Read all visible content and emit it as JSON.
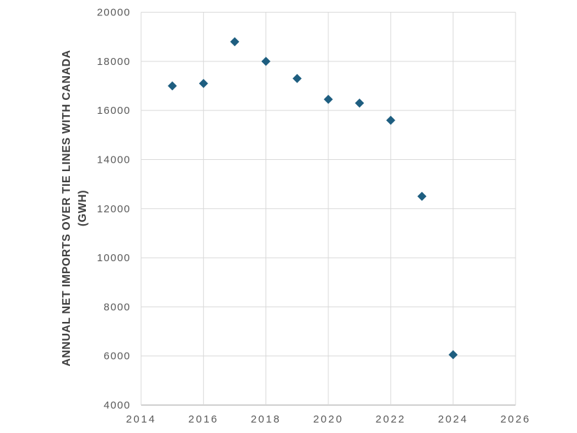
{
  "chart_data": {
    "type": "scatter",
    "title": "",
    "xlabel": "",
    "ylabel": "ANNUAL NET IMPORTS OVER TIE LINES WITH CANADA (GWH)",
    "ylabel_line1": "ANNUAL NET IMPORTS OVER TIE LINES WITH CANADA",
    "ylabel_line2": "(GWH)",
    "x": [
      2015,
      2016,
      2017,
      2018,
      2019,
      2020,
      2021,
      2022,
      2023,
      2024
    ],
    "y": [
      17000,
      17100,
      18800,
      18000,
      17300,
      16450,
      16300,
      15600,
      12500,
      6050
    ],
    "series_name": "Annual net imports over tie lines with Canada (GWh)",
    "xlim": [
      2014,
      2026
    ],
    "ylim": [
      4000,
      20000
    ],
    "x_ticks": [
      2014,
      2016,
      2018,
      2020,
      2022,
      2024,
      2026
    ],
    "y_ticks": [
      4000,
      6000,
      8000,
      10000,
      12000,
      14000,
      16000,
      18000,
      20000
    ],
    "grid": true,
    "legend": "none",
    "marker": {
      "shape": "diamond",
      "color": "#1e5e80",
      "size": 13
    },
    "colors": {
      "background": "#ffffff",
      "gridline": "#d9d9d9",
      "axis_line": "#bfbfbf",
      "tick_label": "#595959",
      "axis_title": "#3f3f3f"
    }
  }
}
